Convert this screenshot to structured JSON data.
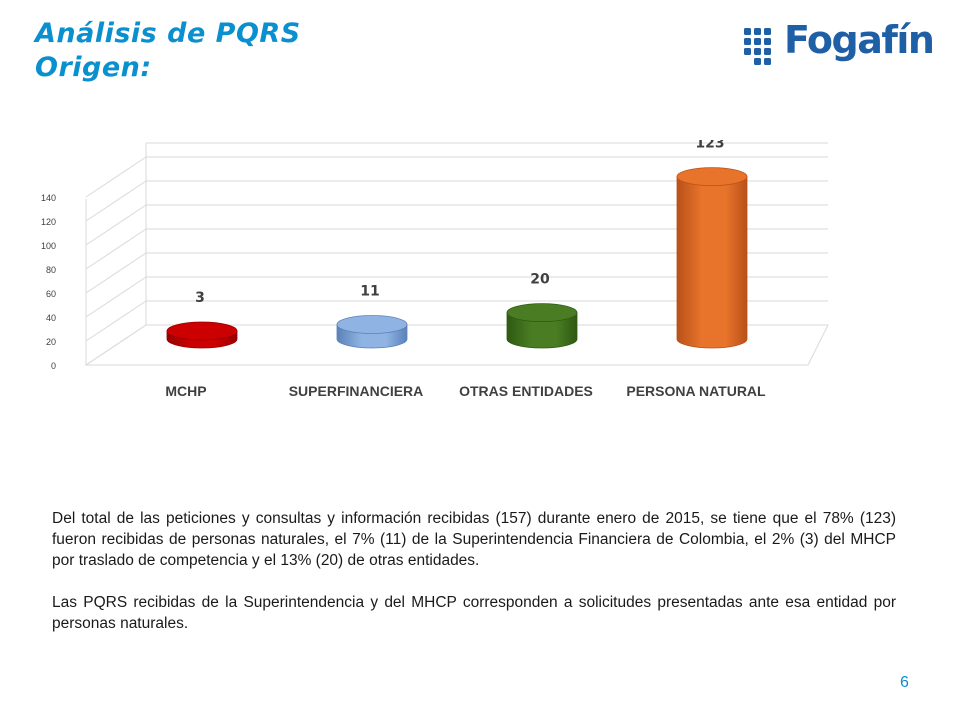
{
  "slide": {
    "title_line1": "Análisis de PQRS",
    "title_line2": "Origen:",
    "logo_text": "Fogafín",
    "paragraph1": "Del total de las peticiones y consultas y información recibidas (157) durante enero de 2015, se tiene que el 78% (123) fueron recibidas de personas naturales, el 7% (11) de la Superintendencia Financiera de Colombia, el 2% (3) del MHCP por traslado de competencia y el 13% (20) de otras entidades.",
    "paragraph2": "Las PQRS recibidas de la Superintendencia y del MHCP corresponden a solicitudes presentadas ante esa entidad por personas naturales.",
    "page_number": "6"
  },
  "colors": {
    "title": "#0a8fcf",
    "logo": "#1f5fa6",
    "bars": [
      "#cc0000",
      "#8fb4e3",
      "#4a7d23",
      "#e8732a"
    ]
  },
  "chart_data": {
    "type": "bar",
    "style": "3d-cylinder",
    "categories": [
      "MCHP",
      "SUPERFINANCIERA",
      "OTRAS ENTIDADES",
      "PERSONA NATURAL"
    ],
    "values": [
      3,
      11,
      20,
      123
    ],
    "data_labels": [
      "3",
      "11",
      "20",
      "123"
    ],
    "ylim": [
      0,
      140
    ],
    "y_ticks": [
      "0",
      "20",
      "40",
      "60",
      "80",
      "100",
      "120",
      "140"
    ],
    "grid": true,
    "legend": "none"
  }
}
